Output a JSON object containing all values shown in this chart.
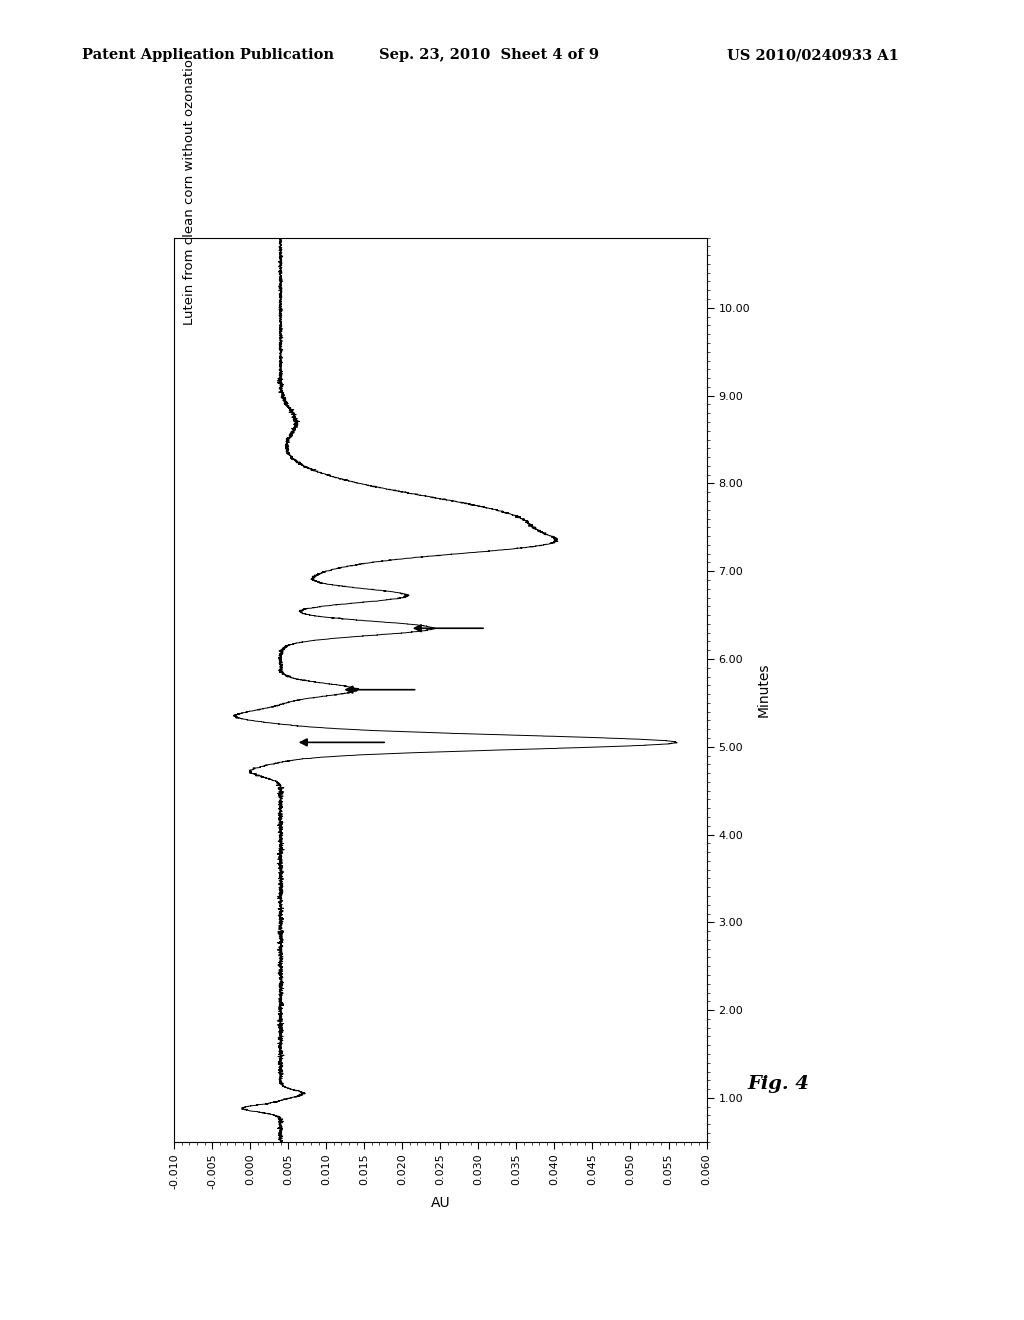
{
  "title_header": "Patent Application Publication",
  "title_date": "Sep. 23, 2010  Sheet 4 of 9",
  "title_patent": "US 2010/0240933 A1",
  "fig_label": "Fig. 4",
  "plot_title": "Lutein from clean corn without ozonation",
  "xlabel": "Minutes",
  "ylabel": "AU",
  "xlim": [
    -0.01,
    0.06
  ],
  "ylim": [
    0.5,
    10.8
  ],
  "yticks": [
    1.0,
    2.0,
    3.0,
    4.0,
    5.0,
    6.0,
    7.0,
    8.0,
    9.0,
    10.0
  ],
  "xticks": [
    -0.01,
    -0.005,
    0.0,
    0.005,
    0.01,
    0.015,
    0.02,
    0.025,
    0.03,
    0.035,
    0.04,
    0.045,
    0.05,
    0.055,
    0.06
  ],
  "background_color": "#ffffff",
  "line_color": "#000000"
}
